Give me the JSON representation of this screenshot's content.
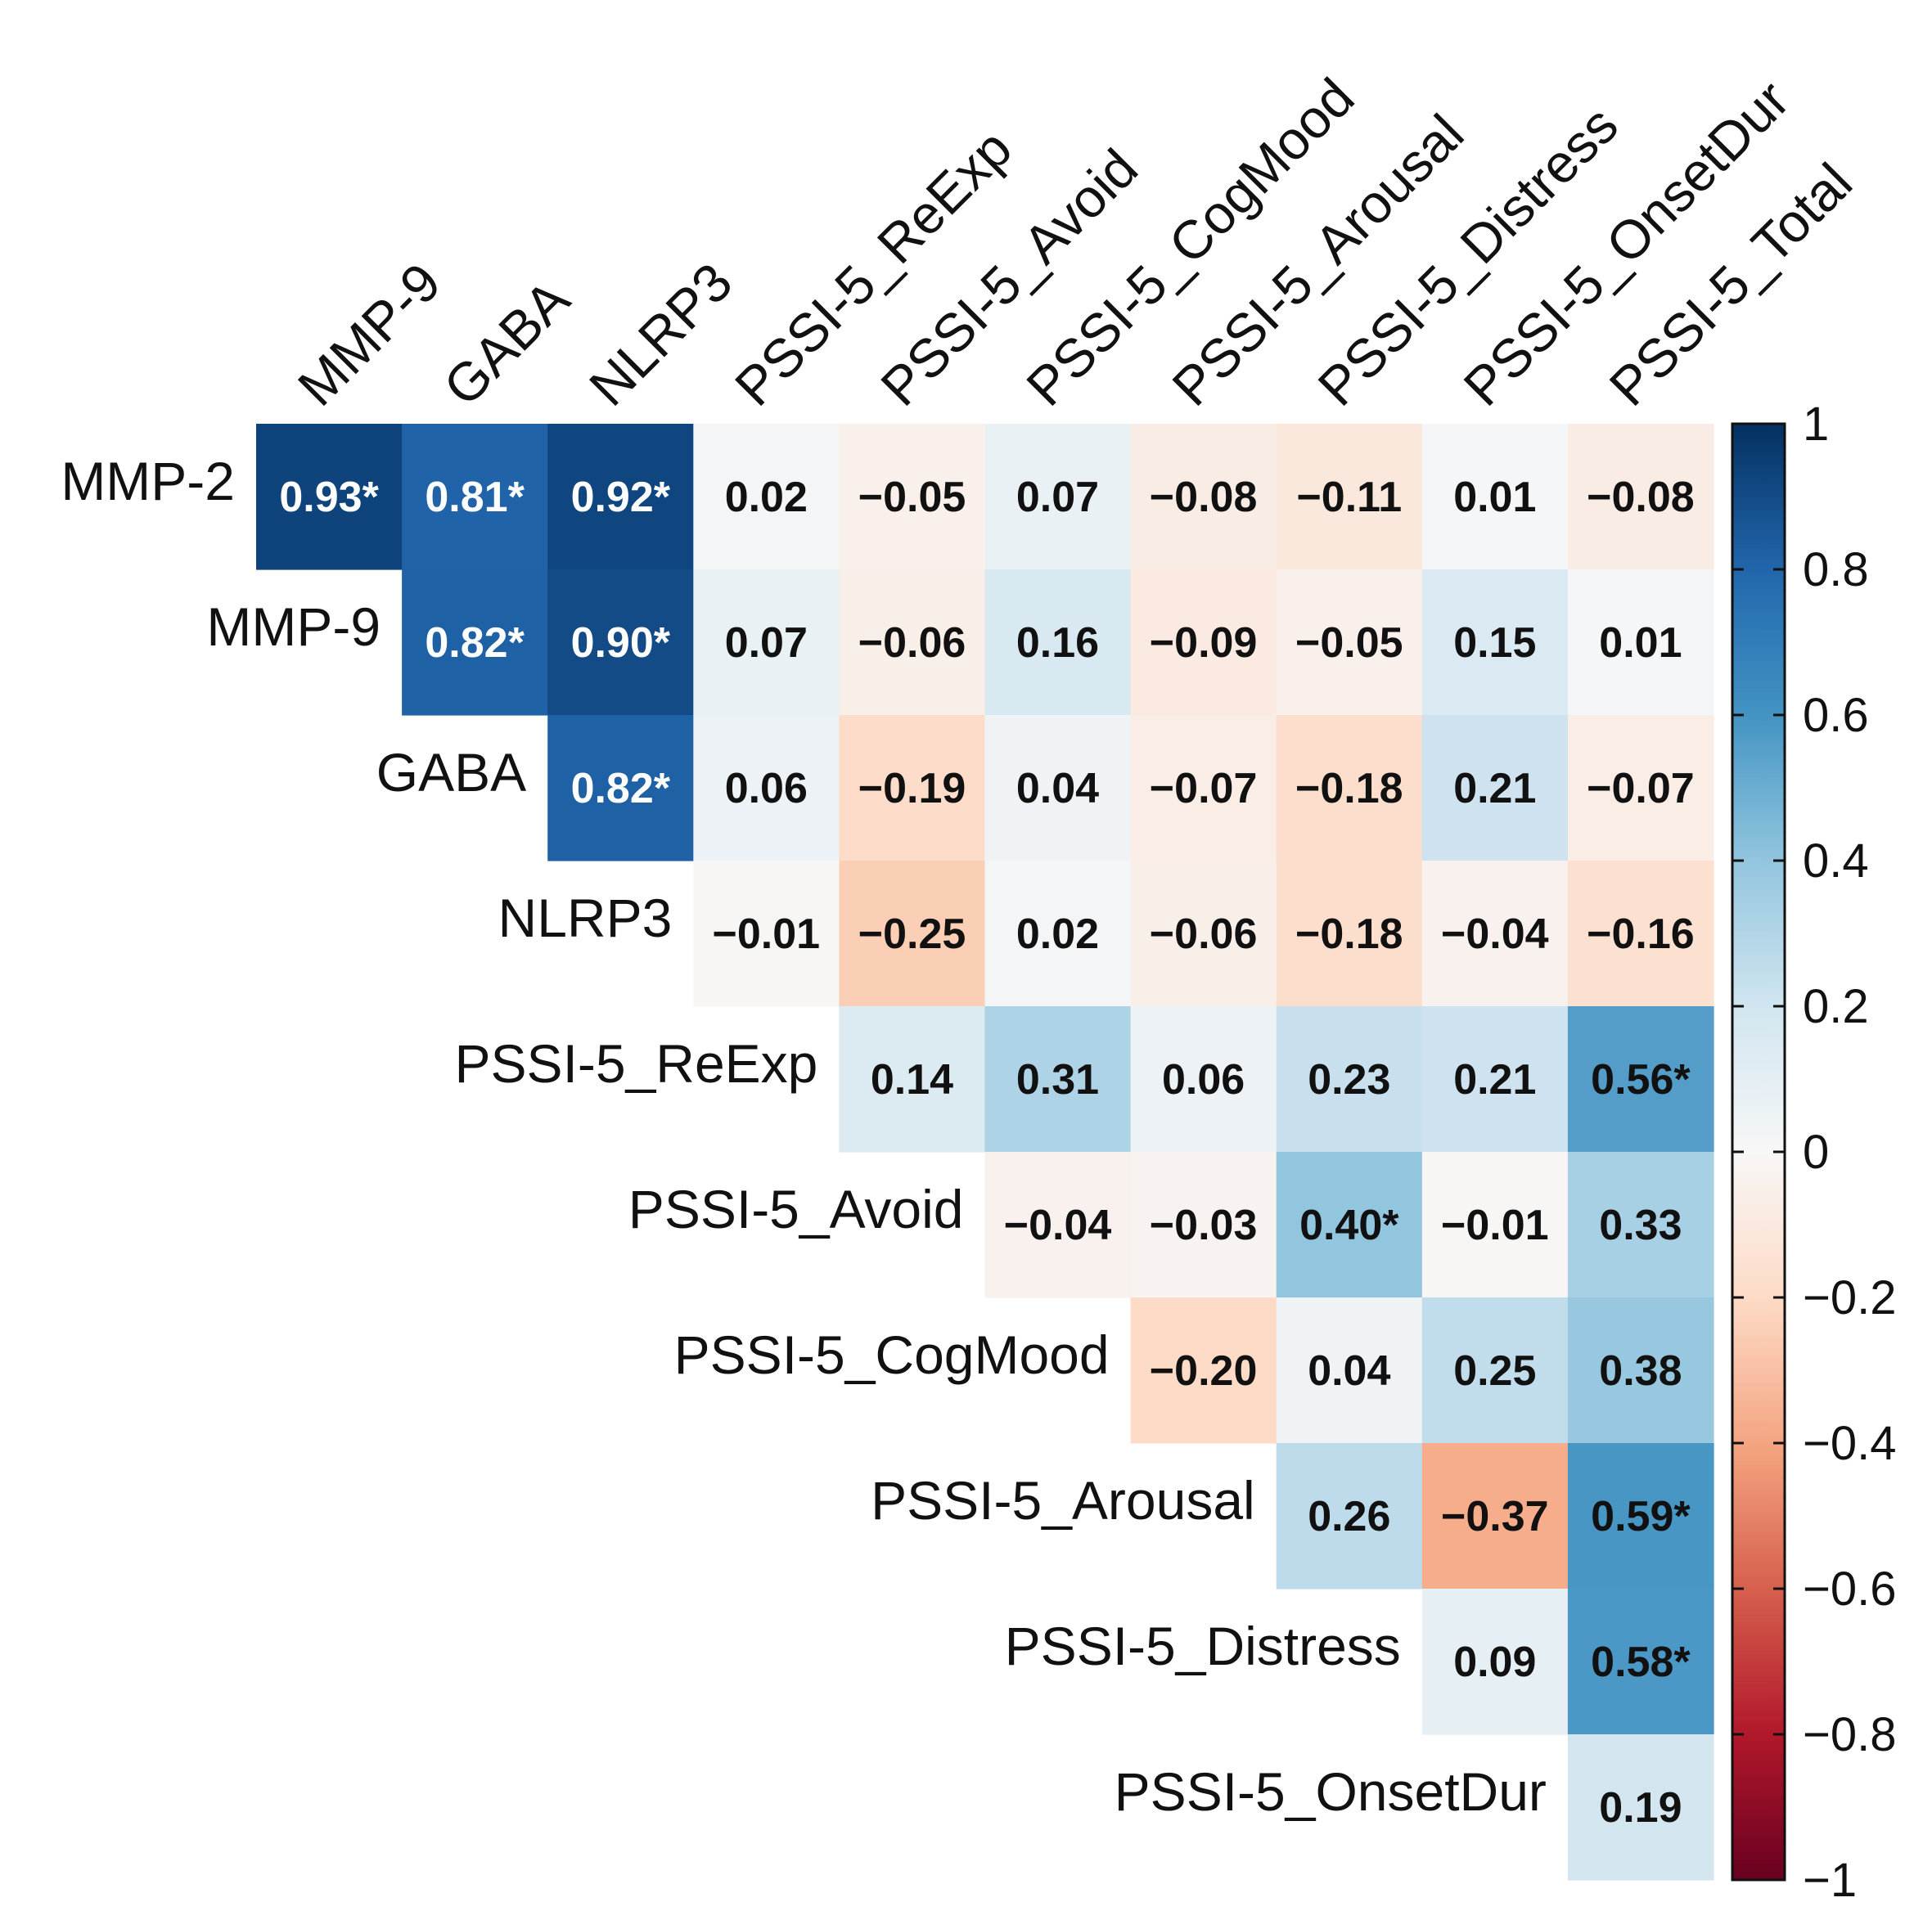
{
  "chart_data": {
    "type": "heatmap",
    "subtype": "correlation-upper-triangle",
    "title": "",
    "row_labels": [
      "MMP-2",
      "MMP-9",
      "GABA",
      "NLRP3",
      "PSSI-5_ReExp",
      "PSSI-5_Avoid",
      "PSSI-5_CogMood",
      "PSSI-5_Arousal",
      "PSSI-5_Distress",
      "PSSI-5_OnsetDur"
    ],
    "column_labels": [
      "MMP-9",
      "GABA",
      "NLRP3",
      "PSSI-5_ReExp",
      "PSSI-5_Avoid",
      "PSSI-5_CogMood",
      "PSSI-5_Arousal",
      "PSSI-5_Distress",
      "PSSI-5_OnsetDur",
      "PSSI-5_Total"
    ],
    "matrix": [
      [
        0.93,
        0.81,
        0.92,
        0.02,
        -0.05,
        0.07,
        -0.08,
        -0.11,
        0.01,
        -0.08
      ],
      [
        null,
        0.82,
        0.9,
        0.07,
        -0.06,
        0.16,
        -0.09,
        -0.05,
        0.15,
        0.01
      ],
      [
        null,
        null,
        0.82,
        0.06,
        -0.19,
        0.04,
        -0.07,
        -0.18,
        0.21,
        -0.07
      ],
      [
        null,
        null,
        null,
        -0.01,
        -0.25,
        0.02,
        -0.06,
        -0.18,
        -0.04,
        -0.16
      ],
      [
        null,
        null,
        null,
        null,
        0.14,
        0.31,
        0.06,
        0.23,
        0.21,
        0.56
      ],
      [
        null,
        null,
        null,
        null,
        null,
        -0.04,
        -0.03,
        0.4,
        -0.01,
        0.33
      ],
      [
        null,
        null,
        null,
        null,
        null,
        null,
        -0.2,
        0.04,
        0.25,
        0.38
      ],
      [
        null,
        null,
        null,
        null,
        null,
        null,
        null,
        0.26,
        -0.37,
        0.59
      ],
      [
        null,
        null,
        null,
        null,
        null,
        null,
        null,
        null,
        0.09,
        0.58
      ],
      [
        null,
        null,
        null,
        null,
        null,
        null,
        null,
        null,
        null,
        0.19
      ]
    ],
    "cell_labels": [
      [
        "0.93*",
        "0.81*",
        "0.92*",
        "0.02",
        "−0.05",
        "0.07",
        "−0.08",
        "−0.11",
        "0.01",
        "−0.08"
      ],
      [
        null,
        "0.82*",
        "0.90*",
        "0.07",
        "−0.06",
        "0.16",
        "−0.09",
        "−0.05",
        "0.15",
        "0.01"
      ],
      [
        null,
        null,
        "0.82*",
        "0.06",
        "−0.19",
        "0.04",
        "−0.07",
        "−0.18",
        "0.21",
        "−0.07"
      ],
      [
        null,
        null,
        null,
        "−0.01",
        "−0.25",
        "0.02",
        "−0.06",
        "−0.18",
        "−0.04",
        "−0.16"
      ],
      [
        null,
        null,
        null,
        null,
        "0.14",
        "0.31",
        "0.06",
        "0.23",
        "0.21",
        "0.56*"
      ],
      [
        null,
        null,
        null,
        null,
        null,
        "−0.04",
        "−0.03",
        "0.40*",
        "−0.01",
        "0.33"
      ],
      [
        null,
        null,
        null,
        null,
        null,
        null,
        "−0.20",
        "0.04",
        "0.25",
        "0.38"
      ],
      [
        null,
        null,
        null,
        null,
        null,
        null,
        null,
        "0.26",
        "−0.37",
        "0.59*"
      ],
      [
        null,
        null,
        null,
        null,
        null,
        null,
        null,
        null,
        "0.09",
        "0.58*"
      ],
      [
        null,
        null,
        null,
        null,
        null,
        null,
        null,
        null,
        null,
        "0.19"
      ]
    ],
    "significance_marker": "*",
    "colorbar": {
      "range": [
        -1,
        1
      ],
      "ticks": [
        1,
        0.8,
        0.6,
        0.4,
        0.2,
        0,
        -0.2,
        -0.4,
        -0.6,
        -0.8,
        -1
      ],
      "tick_labels": [
        "1",
        "0.8",
        "0.6",
        "0.4",
        "0.2",
        "0",
        "−0.2",
        "−0.4",
        "−0.6",
        "−0.8",
        "−1"
      ],
      "placement": "right"
    },
    "colormap": {
      "name": "RdBu",
      "stops": [
        {
          "value": -1.0,
          "color": "#67001f"
        },
        {
          "value": -0.8,
          "color": "#b2182b"
        },
        {
          "value": -0.6,
          "color": "#d6604d"
        },
        {
          "value": -0.4,
          "color": "#f4a582"
        },
        {
          "value": -0.2,
          "color": "#fddbc7"
        },
        {
          "value": 0.0,
          "color": "#f7f7f7"
        },
        {
          "value": 0.2,
          "color": "#d1e5f0"
        },
        {
          "value": 0.4,
          "color": "#92c5de"
        },
        {
          "value": 0.6,
          "color": "#4393c3"
        },
        {
          "value": 0.8,
          "color": "#2166ac"
        },
        {
          "value": 1.0,
          "color": "#053061"
        }
      ]
    },
    "text_colors": {
      "on_dark": "#ffffff",
      "on_light": "#111111"
    }
  }
}
